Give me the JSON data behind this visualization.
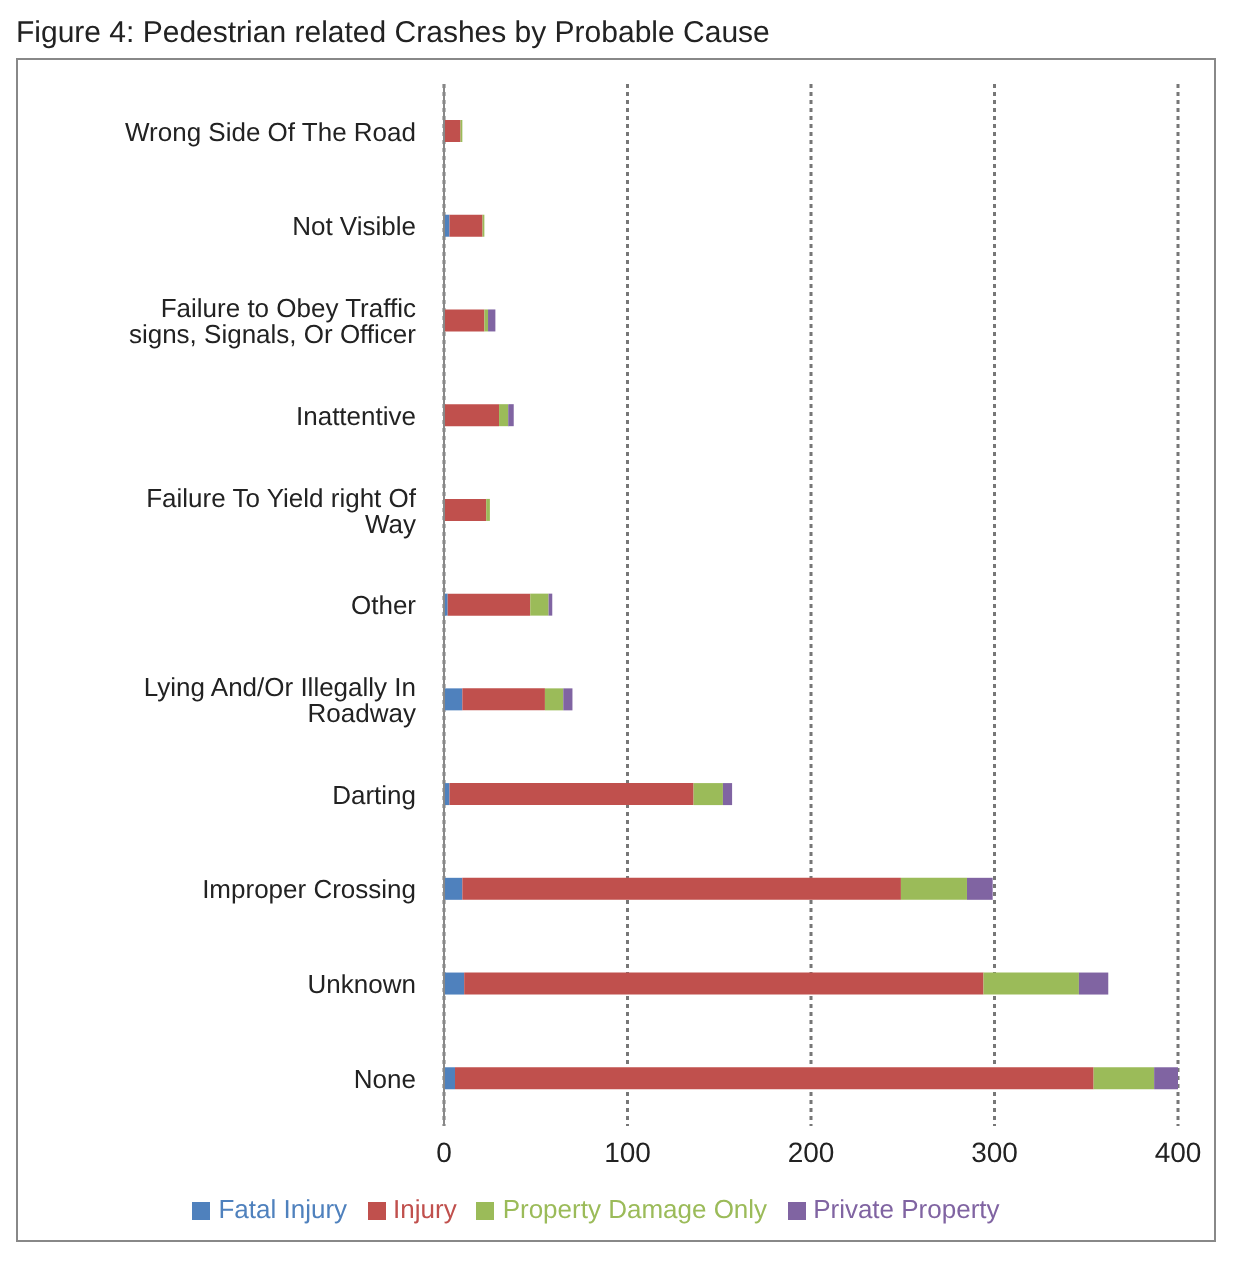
{
  "chart_data": {
    "type": "bar",
    "title": "Figure 4: Pedestrian related Crashes by Probable Cause",
    "orientation": "horizontal",
    "stacked": true,
    "categories": [
      "Wrong Side Of The Road",
      "Not Visible",
      "Failure to Obey Traffic signs, Signals, Or Officer",
      "Inattentive",
      "Failure To Yield right Of Way",
      "Other",
      "Lying And/Or Illegally In Roadway",
      "Darting",
      "Improper Crossing",
      "Unknown",
      "None"
    ],
    "series": [
      {
        "name": "Fatal Injury",
        "color": "#4f81bd",
        "values": [
          0,
          3,
          0,
          0,
          0,
          2,
          10,
          3,
          10,
          11,
          6
        ]
      },
      {
        "name": "Injury",
        "color": "#c0504d",
        "values": [
          9,
          18,
          22,
          30,
          23,
          45,
          45,
          133,
          239,
          283,
          348
        ]
      },
      {
        "name": "Property Damage Only",
        "color": "#9bbb59",
        "values": [
          1,
          1,
          2,
          5,
          2,
          10,
          10,
          16,
          36,
          52,
          33
        ]
      },
      {
        "name": "Private Property",
        "color": "#8064a2",
        "values": [
          0,
          0,
          4,
          3,
          0,
          2,
          5,
          5,
          14,
          16,
          13
        ]
      }
    ],
    "xlim": [
      0,
      400
    ],
    "xticks": [
      0,
      100,
      200,
      300,
      400
    ],
    "grid": "x",
    "legend": "bottom"
  }
}
